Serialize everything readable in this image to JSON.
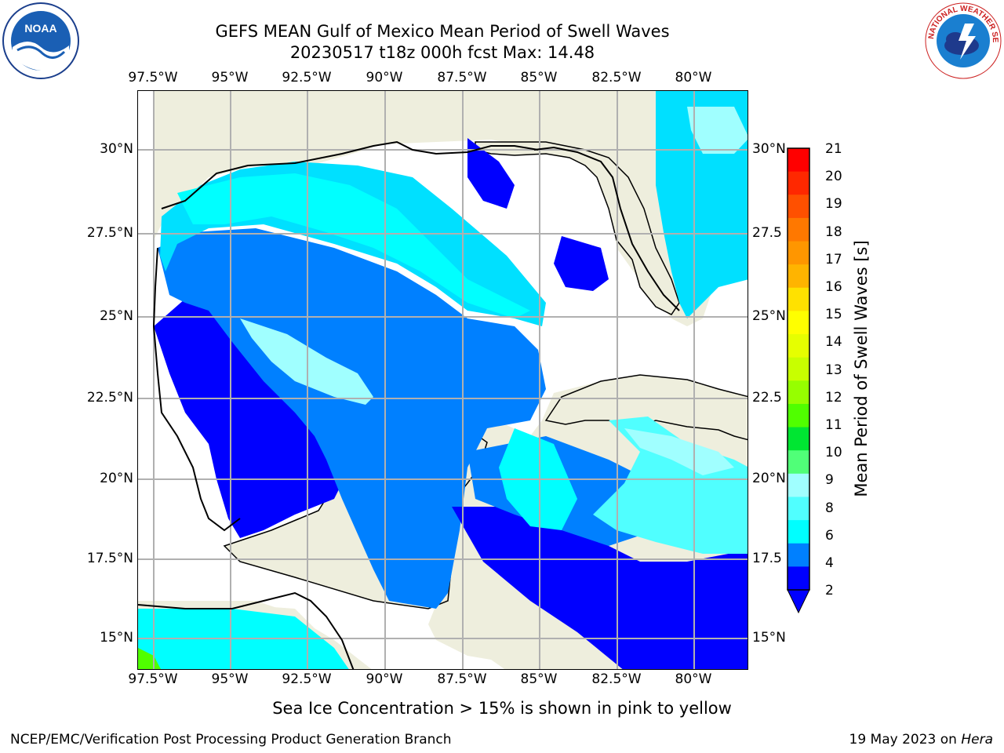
{
  "title": {
    "line1": "GEFS MEAN Gulf of Mexico Mean Period of Swell Waves",
    "line2": "20230517 t18z 000h fcst   Max: 14.48"
  },
  "map": {
    "lon_labels": [
      "97.5°W",
      "95°W",
      "92.5°W",
      "90°W",
      "87.5°W",
      "85°W",
      "82.5°W",
      "80°W"
    ],
    "lat_labels": [
      "30°N",
      "27.5°N",
      "25°N",
      "22.5°N",
      "20°N",
      "17.5°N",
      "15°N"
    ],
    "lat_labels_right": [
      "30°N",
      "27.5",
      "25°N",
      "22.5",
      "20°N",
      "17.5",
      "15°N"
    ],
    "land_color": "#eeeedd",
    "grid_color": "#b0b0b0"
  },
  "colorbar": {
    "title": "Mean Period of Swell Waves [s]",
    "ticks": [
      "21",
      "20",
      "19",
      "18",
      "17",
      "16",
      "15",
      "14",
      "13",
      "12",
      "11",
      "10",
      "9",
      "8",
      "6",
      "4",
      "2"
    ],
    "colors": [
      "#ff0000",
      "#ff2800",
      "#ff5000",
      "#ff7800",
      "#ff9600",
      "#ffb400",
      "#ffe100",
      "#ffff00",
      "#e6ff00",
      "#c8ff00",
      "#96ff00",
      "#50ff00",
      "#00e632",
      "#50ff78",
      "#a0ffff",
      "#50ffff",
      "#00ffff",
      "#0080ff",
      "#0000ff"
    ]
  },
  "note": "Sea Ice Concentration > 15% is shown in pink to yellow",
  "credit_left": "NCEP/EMC/Verification Post Processing Product Generation Branch",
  "credit_right_date": "19 May 2023 on ",
  "credit_right_host": "Hera",
  "logos": {
    "noaa_text": "NOAA",
    "nws_text": "NATIONAL WEATHER SERVICE"
  }
}
